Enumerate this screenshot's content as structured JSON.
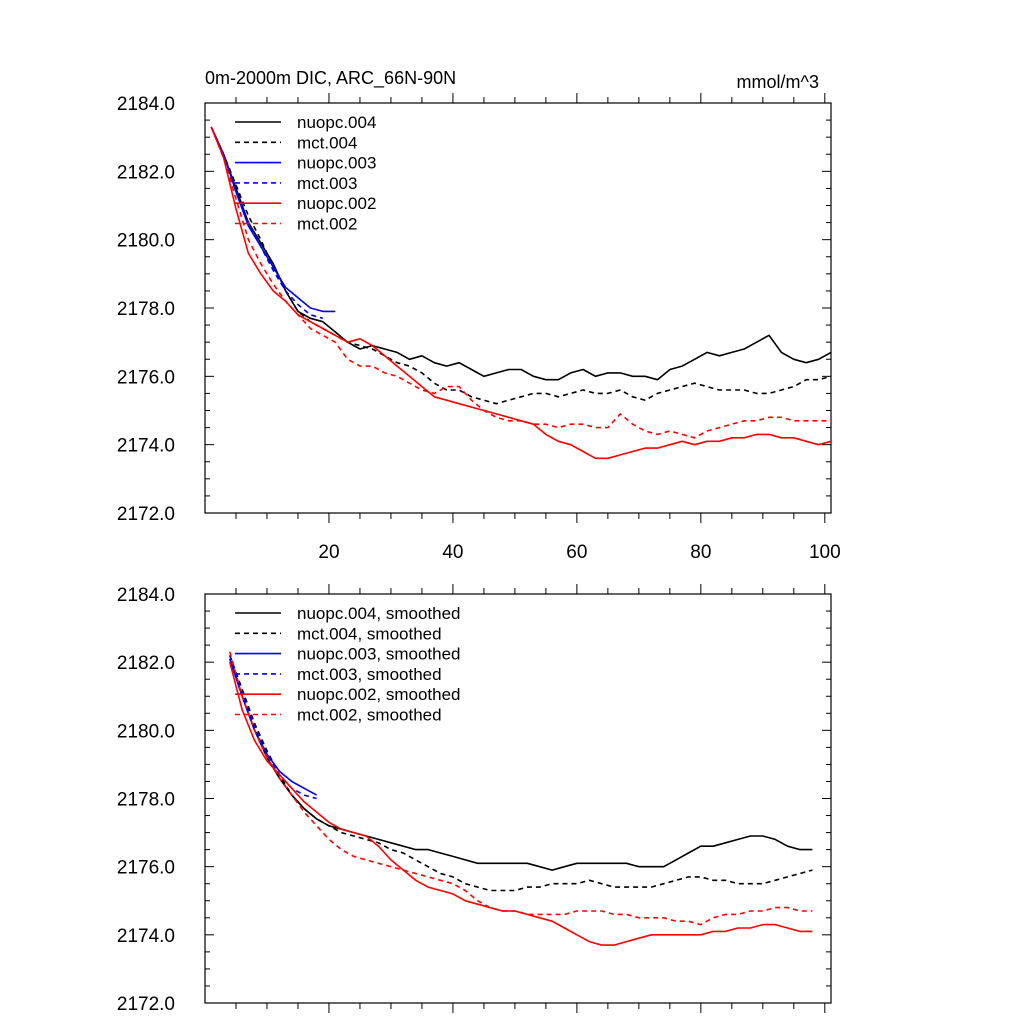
{
  "figure": {
    "title_left": "0m-2000m DIC, ARC_66N-90N",
    "title_right": "mmol/m^3"
  },
  "chart_data": [
    {
      "type": "line",
      "panel": "top",
      "xlim": [
        0,
        101
      ],
      "ylim": [
        2172,
        2184
      ],
      "xticks": [
        20,
        40,
        60,
        80,
        100
      ],
      "xtick_labels": [
        "20",
        "40",
        "60",
        "80",
        "100"
      ],
      "yticks": [
        2172,
        2174,
        2176,
        2178,
        2180,
        2182,
        2184
      ],
      "ytick_labels": [
        "2172.0",
        "2174.0",
        "2176.0",
        "2178.0",
        "2180.0",
        "2182.0",
        "2184.0"
      ],
      "legend_position": "top-left",
      "grid": false,
      "series": [
        {
          "name": "nuopc.004",
          "color": "#000000",
          "dash": "solid",
          "x": [
            1,
            3,
            5,
            7,
            9,
            11,
            13,
            15,
            17,
            19,
            21,
            23,
            25,
            27,
            29,
            31,
            33,
            35,
            37,
            39,
            41,
            43,
            45,
            47,
            49,
            51,
            53,
            55,
            57,
            59,
            61,
            63,
            65,
            67,
            69,
            71,
            73,
            75,
            77,
            79,
            81,
            83,
            85,
            87,
            89,
            91,
            93,
            95,
            97,
            99,
            101
          ],
          "y": [
            2183.3,
            2182.5,
            2181.5,
            2180.5,
            2179.9,
            2179.3,
            2178.5,
            2177.9,
            2177.7,
            2177.6,
            2177.3,
            2177.0,
            2176.8,
            2176.9,
            2176.8,
            2176.7,
            2176.5,
            2176.6,
            2176.4,
            2176.3,
            2176.4,
            2176.2,
            2176.0,
            2176.1,
            2176.2,
            2176.2,
            2176.0,
            2175.9,
            2175.9,
            2176.1,
            2176.2,
            2176.0,
            2176.1,
            2176.1,
            2176.0,
            2176.0,
            2175.9,
            2176.2,
            2176.3,
            2176.5,
            2176.7,
            2176.6,
            2176.7,
            2176.8,
            2177.0,
            2177.2,
            2176.7,
            2176.5,
            2176.4,
            2176.5,
            2176.7
          ]
        },
        {
          "name": "mct.004",
          "color": "#000000",
          "dash": "dashed",
          "x": [
            1,
            3,
            5,
            7,
            9,
            11,
            13,
            15,
            17,
            19,
            21,
            23,
            25,
            27,
            29,
            31,
            33,
            35,
            37,
            39,
            41,
            43,
            45,
            47,
            49,
            51,
            53,
            55,
            57,
            59,
            61,
            63,
            65,
            67,
            69,
            71,
            73,
            75,
            77,
            79,
            81,
            83,
            85,
            87,
            89,
            91,
            93,
            95,
            97,
            99,
            101
          ],
          "y": [
            2183.3,
            2182.5,
            2181.6,
            2180.7,
            2180.0,
            2179.2,
            2178.5,
            2177.9,
            2177.6,
            2177.4,
            2177.2,
            2177.0,
            2176.9,
            2176.8,
            2176.6,
            2176.4,
            2176.3,
            2176.1,
            2175.8,
            2175.6,
            2175.6,
            2175.4,
            2175.3,
            2175.2,
            2175.3,
            2175.4,
            2175.5,
            2175.5,
            2175.4,
            2175.5,
            2175.6,
            2175.5,
            2175.5,
            2175.6,
            2175.4,
            2175.3,
            2175.5,
            2175.6,
            2175.7,
            2175.8,
            2175.7,
            2175.6,
            2175.6,
            2175.6,
            2175.5,
            2175.5,
            2175.6,
            2175.7,
            2175.9,
            2175.9,
            2176.0
          ]
        },
        {
          "name": "nuopc.003",
          "color": "#0000ff",
          "dash": "solid",
          "x": [
            1,
            3,
            5,
            7,
            9,
            11,
            13,
            15,
            17,
            19,
            21
          ],
          "y": [
            2183.3,
            2182.5,
            2181.4,
            2180.4,
            2179.8,
            2179.2,
            2178.6,
            2178.3,
            2178.0,
            2177.9,
            2177.9
          ]
        },
        {
          "name": "mct.003",
          "color": "#0000ff",
          "dash": "dashed",
          "x": [
            1,
            3,
            5,
            7,
            9,
            11,
            13,
            15,
            17,
            19
          ],
          "y": [
            2183.3,
            2182.4,
            2181.4,
            2180.5,
            2179.8,
            2179.1,
            2178.5,
            2178.1,
            2177.8,
            2177.7
          ]
        },
        {
          "name": "nuopc.002",
          "color": "#ff0000",
          "dash": "solid",
          "x": [
            1,
            3,
            5,
            7,
            9,
            11,
            13,
            15,
            17,
            19,
            21,
            23,
            25,
            27,
            29,
            31,
            33,
            35,
            37,
            39,
            41,
            43,
            45,
            47,
            49,
            51,
            53,
            55,
            57,
            59,
            61,
            63,
            65,
            67,
            69,
            71,
            73,
            75,
            77,
            79,
            81,
            83,
            85,
            87,
            89,
            91,
            93,
            95,
            97,
            99,
            101
          ],
          "y": [
            2183.3,
            2182.4,
            2180.9,
            2179.6,
            2179.0,
            2178.5,
            2178.2,
            2177.8,
            2177.6,
            2177.4,
            2177.2,
            2177.0,
            2177.1,
            2176.9,
            2176.6,
            2176.3,
            2176.0,
            2175.7,
            2175.4,
            2175.3,
            2175.2,
            2175.1,
            2175.0,
            2174.9,
            2174.8,
            2174.7,
            2174.6,
            2174.3,
            2174.1,
            2174.0,
            2173.8,
            2173.6,
            2173.6,
            2173.7,
            2173.8,
            2173.9,
            2173.9,
            2174.0,
            2174.1,
            2174.0,
            2174.1,
            2174.1,
            2174.2,
            2174.2,
            2174.3,
            2174.3,
            2174.2,
            2174.2,
            2174.1,
            2174.0,
            2174.1
          ]
        },
        {
          "name": "mct.002",
          "color": "#ff0000",
          "dash": "dashed",
          "x": [
            1,
            3,
            5,
            7,
            9,
            11,
            13,
            15,
            17,
            19,
            21,
            23,
            25,
            27,
            29,
            31,
            33,
            35,
            37,
            39,
            41,
            43,
            45,
            47,
            49,
            51,
            53,
            55,
            57,
            59,
            61,
            63,
            65,
            67,
            69,
            71,
            73,
            75,
            77,
            79,
            81,
            83,
            85,
            87,
            89,
            91,
            93,
            95,
            97,
            99,
            101
          ],
          "y": [
            2183.3,
            2182.4,
            2181.2,
            2180.0,
            2179.3,
            2178.7,
            2178.2,
            2177.8,
            2177.4,
            2177.2,
            2177.0,
            2176.5,
            2176.3,
            2176.3,
            2176.1,
            2176.0,
            2175.8,
            2175.6,
            2175.5,
            2175.7,
            2175.7,
            2175.3,
            2175.0,
            2174.8,
            2174.7,
            2174.7,
            2174.6,
            2174.6,
            2174.5,
            2174.6,
            2174.6,
            2174.5,
            2174.5,
            2174.9,
            2174.6,
            2174.4,
            2174.3,
            2174.4,
            2174.3,
            2174.2,
            2174.4,
            2174.5,
            2174.6,
            2174.7,
            2174.7,
            2174.8,
            2174.8,
            2174.7,
            2174.7,
            2174.7,
            2174.7
          ]
        }
      ]
    },
    {
      "type": "line",
      "panel": "bottom",
      "xlim": [
        0,
        101
      ],
      "ylim": [
        2172,
        2184
      ],
      "xticks": [
        20,
        40,
        60,
        80,
        100
      ],
      "xtick_labels": [],
      "yticks": [
        2172,
        2174,
        2176,
        2178,
        2180,
        2182,
        2184
      ],
      "ytick_labels": [
        "2172.0",
        "2174.0",
        "2176.0",
        "2178.0",
        "2180.0",
        "2182.0",
        "2184.0"
      ],
      "legend_position": "top-left",
      "grid": false,
      "series": [
        {
          "name": "nuopc.004, smoothed",
          "color": "#000000",
          "dash": "solid",
          "x": [
            4,
            6,
            8,
            10,
            12,
            14,
            16,
            18,
            20,
            22,
            24,
            26,
            28,
            30,
            32,
            34,
            36,
            38,
            40,
            42,
            44,
            46,
            48,
            50,
            52,
            54,
            56,
            58,
            60,
            62,
            64,
            66,
            68,
            70,
            72,
            74,
            76,
            78,
            80,
            82,
            84,
            86,
            88,
            90,
            92,
            94,
            96,
            98
          ],
          "y": [
            2182.1,
            2181.0,
            2180.0,
            2179.2,
            2178.6,
            2178.1,
            2177.7,
            2177.4,
            2177.2,
            2177.1,
            2177.0,
            2176.9,
            2176.8,
            2176.7,
            2176.6,
            2176.5,
            2176.5,
            2176.4,
            2176.3,
            2176.2,
            2176.1,
            2176.1,
            2176.1,
            2176.1,
            2176.1,
            2176.0,
            2175.9,
            2176.0,
            2176.1,
            2176.1,
            2176.1,
            2176.1,
            2176.1,
            2176.0,
            2176.0,
            2176.0,
            2176.2,
            2176.4,
            2176.6,
            2176.6,
            2176.7,
            2176.8,
            2176.9,
            2176.9,
            2176.8,
            2176.6,
            2176.5,
            2176.5
          ]
        },
        {
          "name": "mct.004, smoothed",
          "color": "#000000",
          "dash": "dashed",
          "x": [
            4,
            6,
            8,
            10,
            12,
            14,
            16,
            18,
            20,
            22,
            24,
            26,
            28,
            30,
            32,
            34,
            36,
            38,
            40,
            42,
            44,
            46,
            48,
            50,
            52,
            54,
            56,
            58,
            60,
            62,
            64,
            66,
            68,
            70,
            72,
            74,
            76,
            78,
            80,
            82,
            84,
            86,
            88,
            90,
            92,
            94,
            96,
            98
          ],
          "y": [
            2182.2,
            2181.2,
            2180.2,
            2179.4,
            2178.7,
            2178.1,
            2177.7,
            2177.4,
            2177.2,
            2177.0,
            2176.9,
            2176.8,
            2176.7,
            2176.5,
            2176.4,
            2176.2,
            2176.0,
            2175.8,
            2175.7,
            2175.5,
            2175.4,
            2175.3,
            2175.3,
            2175.3,
            2175.4,
            2175.4,
            2175.5,
            2175.5,
            2175.5,
            2175.6,
            2175.5,
            2175.4,
            2175.4,
            2175.4,
            2175.4,
            2175.5,
            2175.6,
            2175.7,
            2175.7,
            2175.6,
            2175.6,
            2175.5,
            2175.5,
            2175.5,
            2175.6,
            2175.7,
            2175.8,
            2175.9
          ]
        },
        {
          "name": "nuopc.003, smoothed",
          "color": "#0000ff",
          "dash": "solid",
          "x": [
            4,
            6,
            8,
            10,
            12,
            14,
            16,
            18
          ],
          "y": [
            2182.1,
            2181.0,
            2180.0,
            2179.3,
            2178.8,
            2178.5,
            2178.3,
            2178.1
          ]
        },
        {
          "name": "mct.003, smoothed",
          "color": "#0000ff",
          "dash": "dashed",
          "x": [
            4,
            6,
            8,
            10,
            12,
            14,
            16,
            18
          ],
          "y": [
            2182.2,
            2181.1,
            2180.1,
            2179.3,
            2178.7,
            2178.3,
            2178.1,
            2178.0
          ]
        },
        {
          "name": "nuopc.002, smoothed",
          "color": "#ff0000",
          "dash": "solid",
          "x": [
            4,
            6,
            8,
            10,
            12,
            14,
            16,
            18,
            20,
            22,
            24,
            26,
            28,
            30,
            32,
            34,
            36,
            38,
            40,
            42,
            44,
            46,
            48,
            50,
            52,
            54,
            56,
            58,
            60,
            62,
            64,
            66,
            68,
            70,
            72,
            74,
            76,
            78,
            80,
            82,
            84,
            86,
            88,
            90,
            92,
            94,
            96,
            98
          ],
          "y": [
            2182.0,
            2180.6,
            2179.7,
            2179.1,
            2178.7,
            2178.3,
            2177.9,
            2177.6,
            2177.3,
            2177.1,
            2177.0,
            2176.9,
            2176.6,
            2176.2,
            2175.9,
            2175.6,
            2175.4,
            2175.3,
            2175.2,
            2175.0,
            2174.9,
            2174.8,
            2174.7,
            2174.7,
            2174.6,
            2174.5,
            2174.4,
            2174.2,
            2174.0,
            2173.8,
            2173.7,
            2173.7,
            2173.8,
            2173.9,
            2174.0,
            2174.0,
            2174.0,
            2174.0,
            2174.0,
            2174.1,
            2174.1,
            2174.2,
            2174.2,
            2174.3,
            2174.3,
            2174.2,
            2174.1,
            2174.1
          ]
        },
        {
          "name": "mct.002, smoothed",
          "color": "#ff0000",
          "dash": "dashed",
          "x": [
            4,
            6,
            8,
            10,
            12,
            14,
            16,
            18,
            20,
            22,
            24,
            26,
            28,
            30,
            32,
            34,
            36,
            38,
            40,
            42,
            44,
            46,
            48,
            50,
            52,
            54,
            56,
            58,
            60,
            62,
            64,
            66,
            68,
            70,
            72,
            74,
            76,
            78,
            80,
            82,
            84,
            86,
            88,
            90,
            92,
            94,
            96,
            98
          ],
          "y": [
            2182.3,
            2181.0,
            2180.0,
            2179.2,
            2178.6,
            2178.1,
            2177.6,
            2177.2,
            2176.8,
            2176.5,
            2176.3,
            2176.2,
            2176.1,
            2176.0,
            2175.9,
            2175.8,
            2175.7,
            2175.6,
            2175.5,
            2175.3,
            2175.0,
            2174.8,
            2174.7,
            2174.7,
            2174.6,
            2174.6,
            2174.6,
            2174.6,
            2174.7,
            2174.7,
            2174.7,
            2174.6,
            2174.6,
            2174.5,
            2174.5,
            2174.5,
            2174.4,
            2174.4,
            2174.3,
            2174.5,
            2174.6,
            2174.6,
            2174.7,
            2174.7,
            2174.8,
            2174.8,
            2174.7,
            2174.7
          ]
        }
      ]
    }
  ]
}
